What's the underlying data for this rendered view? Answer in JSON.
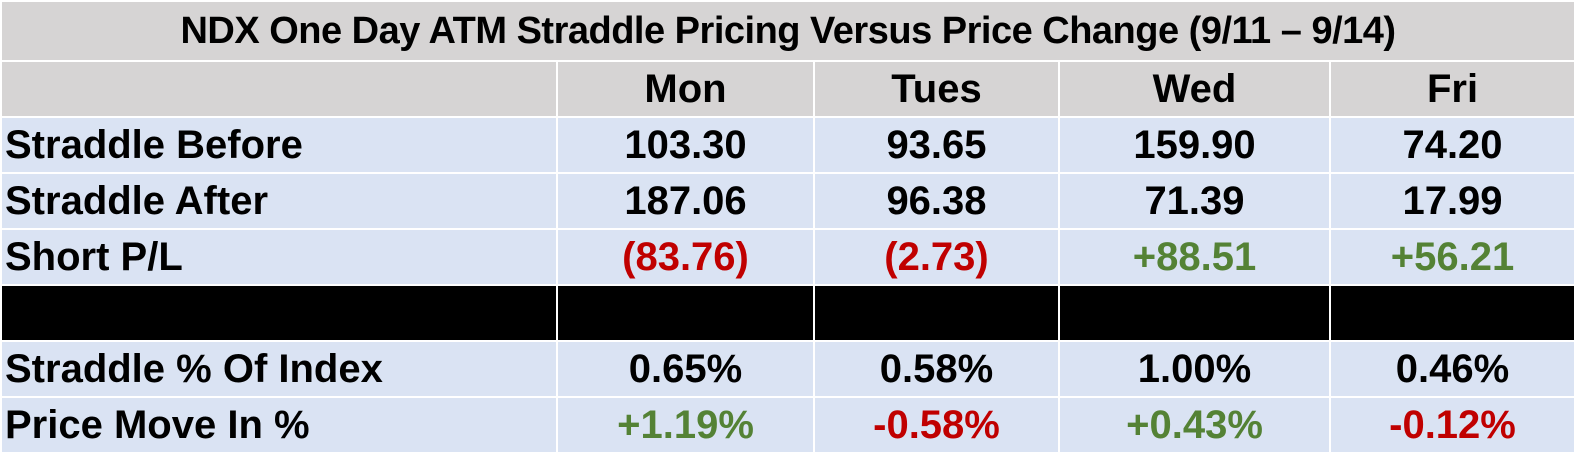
{
  "title": "NDX One Day ATM Straddle Pricing Versus Price Change (9/11 – 9/14)",
  "columns": [
    "",
    "Mon",
    "Tues",
    "Wed",
    "Fri"
  ],
  "rows": [
    {
      "label": "Straddle Before",
      "values": [
        "103.30",
        "93.65",
        "159.90",
        "74.20"
      ],
      "colors": [
        "#000000",
        "#000000",
        "#000000",
        "#000000"
      ]
    },
    {
      "label": "Straddle After",
      "values": [
        "187.06",
        "96.38",
        "71.39",
        "17.99"
      ],
      "colors": [
        "#000000",
        "#000000",
        "#000000",
        "#000000"
      ]
    },
    {
      "label": "Short P/L",
      "values": [
        "(83.76)",
        "(2.73)",
        "+88.51",
        "+56.21"
      ],
      "colors": [
        "#c00000",
        "#c00000",
        "#548235",
        "#548235"
      ]
    },
    {
      "label": "Straddle % Of Index",
      "values": [
        "0.65%",
        "0.58%",
        "1.00%",
        "0.46%"
      ],
      "colors": [
        "#000000",
        "#000000",
        "#000000",
        "#000000"
      ]
    },
    {
      "label": "Price Move In %",
      "values": [
        "+1.19%",
        "-0.58%",
        "+0.43%",
        "-0.12%"
      ],
      "colors": [
        "#548235",
        "#c00000",
        "#548235",
        "#c00000"
      ]
    }
  ]
}
